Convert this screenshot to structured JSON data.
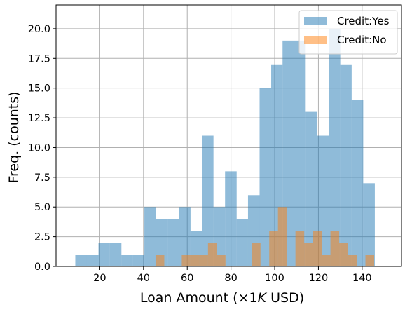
{
  "chart_data": {
    "type": "histogram",
    "xlabel": "Loan Amount (×1",
    "xlabel_italic": "K",
    "xlabel_tail": " USD)",
    "ylabel": "Freq. (counts)",
    "xlim": [
      0,
      158
    ],
    "ylim": [
      0,
      22
    ],
    "x_ticks": [
      20,
      40,
      60,
      80,
      100,
      120,
      140
    ],
    "y_ticks": [
      "0.0",
      "2.5",
      "5.0",
      "7.5",
      "10.0",
      "12.5",
      "15.0",
      "17.5",
      "20.0"
    ],
    "grid": true,
    "legend_position": "top-right",
    "series": [
      {
        "name": "Credit:Yes",
        "color": "#1f77b4",
        "alpha": 0.5,
        "bins": [
          {
            "start": 8.8,
            "end": 14.1,
            "count": 1
          },
          {
            "start": 14.1,
            "end": 19.4,
            "count": 1
          },
          {
            "start": 19.4,
            "end": 24.6,
            "count": 2
          },
          {
            "start": 24.6,
            "end": 29.9,
            "count": 2
          },
          {
            "start": 29.9,
            "end": 35.2,
            "count": 1
          },
          {
            "start": 35.2,
            "end": 40.4,
            "count": 1
          },
          {
            "start": 40.4,
            "end": 45.7,
            "count": 5
          },
          {
            "start": 45.7,
            "end": 51.0,
            "count": 4
          },
          {
            "start": 51.0,
            "end": 56.2,
            "count": 4
          },
          {
            "start": 56.2,
            "end": 61.5,
            "count": 5
          },
          {
            "start": 61.5,
            "end": 66.8,
            "count": 3
          },
          {
            "start": 66.8,
            "end": 72.0,
            "count": 11
          },
          {
            "start": 72.0,
            "end": 77.3,
            "count": 5
          },
          {
            "start": 77.3,
            "end": 82.6,
            "count": 8
          },
          {
            "start": 82.6,
            "end": 87.8,
            "count": 4
          },
          {
            "start": 87.8,
            "end": 93.1,
            "count": 6
          },
          {
            "start": 93.1,
            "end": 98.4,
            "count": 15
          },
          {
            "start": 98.4,
            "end": 103.6,
            "count": 17
          },
          {
            "start": 103.6,
            "end": 108.9,
            "count": 19
          },
          {
            "start": 108.9,
            "end": 114.2,
            "count": 19
          },
          {
            "start": 114.2,
            "end": 119.4,
            "count": 13
          },
          {
            "start": 119.4,
            "end": 124.7,
            "count": 11
          },
          {
            "start": 124.7,
            "end": 130.0,
            "count": 20
          },
          {
            "start": 130.0,
            "end": 135.2,
            "count": 17
          },
          {
            "start": 135.2,
            "end": 140.5,
            "count": 14
          },
          {
            "start": 140.5,
            "end": 145.8,
            "count": 7
          }
        ]
      },
      {
        "name": "Credit:No",
        "color": "#ff7f0e",
        "alpha": 0.5,
        "bins": [
          {
            "start": 45.5,
            "end": 49.5,
            "count": 1
          },
          {
            "start": 57.5,
            "end": 61.5,
            "count": 1
          },
          {
            "start": 61.5,
            "end": 65.5,
            "count": 1
          },
          {
            "start": 65.5,
            "end": 69.5,
            "count": 1
          },
          {
            "start": 69.5,
            "end": 73.5,
            "count": 2
          },
          {
            "start": 73.5,
            "end": 77.5,
            "count": 1
          },
          {
            "start": 89.5,
            "end": 93.5,
            "count": 2
          },
          {
            "start": 97.5,
            "end": 101.5,
            "count": 3
          },
          {
            "start": 101.5,
            "end": 105.5,
            "count": 5
          },
          {
            "start": 109.5,
            "end": 113.5,
            "count": 3
          },
          {
            "start": 113.5,
            "end": 117.5,
            "count": 2
          },
          {
            "start": 117.5,
            "end": 121.5,
            "count": 3
          },
          {
            "start": 121.5,
            "end": 125.5,
            "count": 1
          },
          {
            "start": 125.5,
            "end": 129.5,
            "count": 3
          },
          {
            "start": 129.5,
            "end": 133.5,
            "count": 2
          },
          {
            "start": 133.5,
            "end": 137.5,
            "count": 1
          },
          {
            "start": 141.5,
            "end": 145.5,
            "count": 1
          }
        ]
      }
    ]
  }
}
